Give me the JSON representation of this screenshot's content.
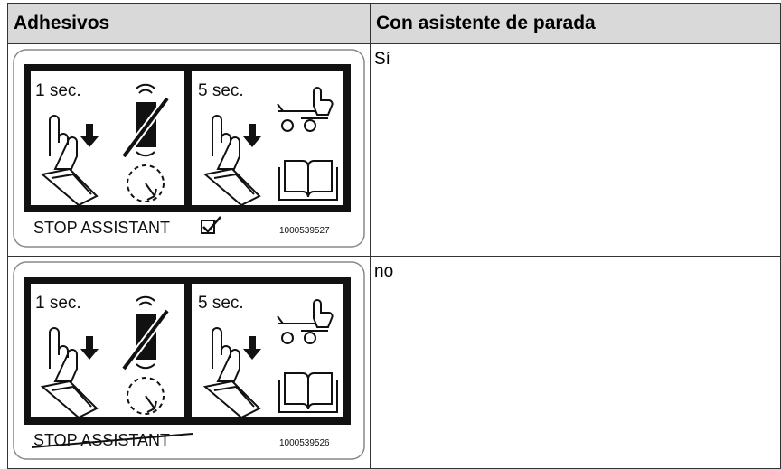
{
  "table": {
    "header": [
      "Adhesivos",
      "Con asistente de parada"
    ],
    "rows": [
      {
        "sticker": {
          "left_time": "1 sec.",
          "right_time": "5 sec.",
          "label": "STOP ASSISTANT",
          "code": "1000539527"
        },
        "value": "Sí"
      },
      {
        "sticker": {
          "left_time": "1 sec.",
          "right_time": "5 sec.",
          "label": "STOP ASSISTANT",
          "code": "1000539526"
        },
        "value": "no"
      }
    ]
  }
}
